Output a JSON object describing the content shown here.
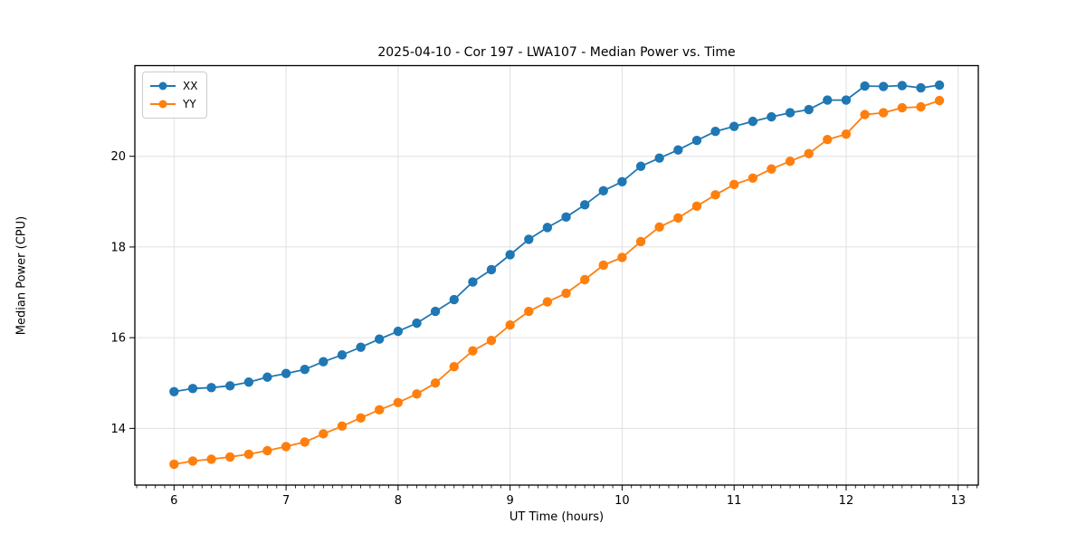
{
  "page": {
    "background": "#ffffff"
  },
  "chart_data": {
    "type": "line",
    "title": "2025-04-10 - Cor 197 - LWA107 - Median Power vs. Time",
    "xlabel": "UT Time (hours)",
    "ylabel": "Median Power (CPU)",
    "xlim": [
      5.65,
      13.18
    ],
    "ylim": [
      12.75,
      22.0
    ],
    "xticks": [
      6,
      7,
      8,
      9,
      10,
      11,
      12,
      13
    ],
    "yticks": [
      14,
      16,
      18,
      20
    ],
    "x_minor_step": 0.083333,
    "grid": true,
    "grid_color": "#e0e0e0",
    "axis_color": "#000000",
    "legend_position": "upper-left",
    "marker": "circle",
    "x": [
      6.0,
      6.167,
      6.333,
      6.5,
      6.667,
      6.833,
      7.0,
      7.167,
      7.333,
      7.5,
      7.667,
      7.833,
      8.0,
      8.167,
      8.333,
      8.5,
      8.667,
      8.833,
      9.0,
      9.167,
      9.333,
      9.5,
      9.667,
      9.833,
      10.0,
      10.167,
      10.333,
      10.5,
      10.667,
      10.833,
      11.0,
      11.167,
      11.333,
      11.5,
      11.667,
      11.833,
      12.0,
      12.167,
      12.333,
      12.5,
      12.667,
      12.833
    ],
    "series": [
      {
        "name": "XX",
        "color": "#1f77b4",
        "values": [
          14.81,
          14.88,
          14.9,
          14.94,
          15.02,
          15.13,
          15.21,
          15.3,
          15.47,
          15.62,
          15.79,
          15.97,
          16.14,
          16.32,
          16.58,
          16.84,
          17.23,
          17.5,
          17.83,
          18.17,
          18.43,
          18.66,
          18.93,
          19.24,
          19.44,
          19.78,
          19.96,
          20.14,
          20.35,
          20.55,
          20.66,
          20.77,
          20.87,
          20.96,
          21.03,
          21.24,
          21.24,
          21.55,
          21.54,
          21.56,
          21.51,
          21.57
        ]
      },
      {
        "name": "YY",
        "color": "#ff7f0e",
        "values": [
          13.21,
          13.28,
          13.32,
          13.37,
          13.43,
          13.51,
          13.6,
          13.7,
          13.88,
          14.05,
          14.23,
          14.41,
          14.57,
          14.76,
          15.0,
          15.36,
          15.71,
          15.94,
          16.28,
          16.58,
          16.79,
          16.98,
          17.28,
          17.6,
          17.77,
          18.12,
          18.44,
          18.64,
          18.9,
          19.15,
          19.38,
          19.52,
          19.72,
          19.89,
          20.06,
          20.37,
          20.49,
          20.92,
          20.96,
          21.07,
          21.09,
          21.23
        ]
      }
    ]
  }
}
